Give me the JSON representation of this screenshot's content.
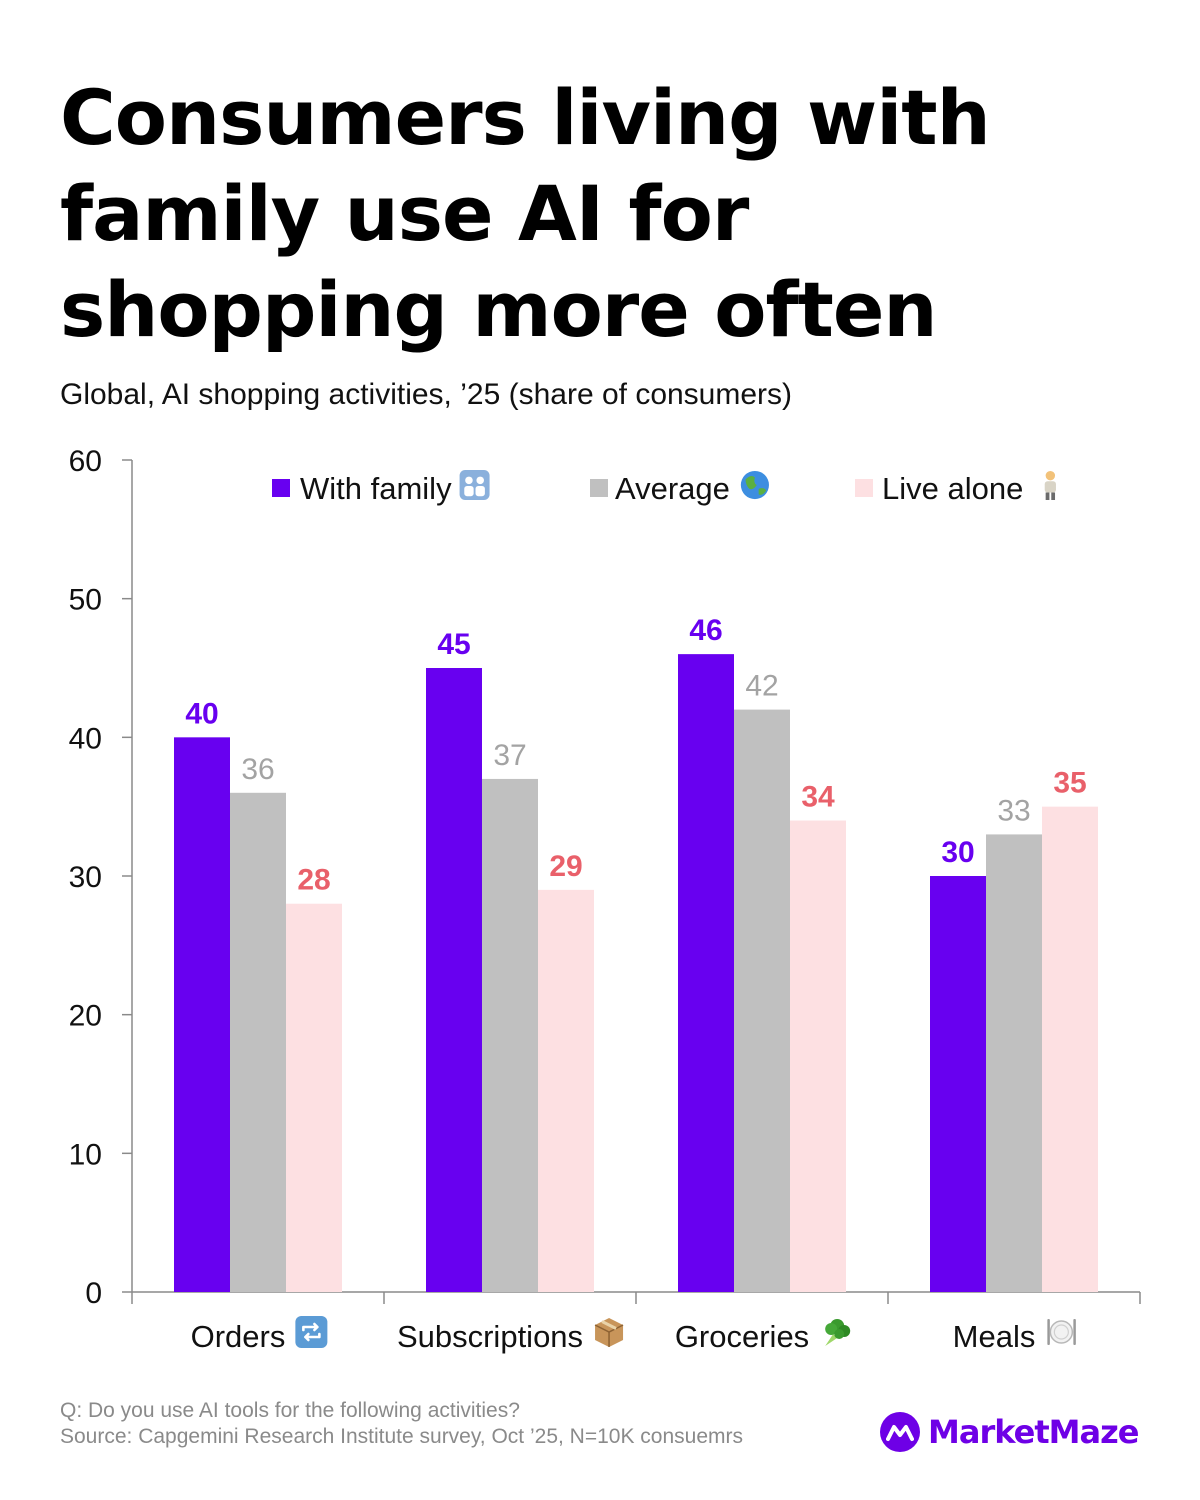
{
  "title": "Consumers living with family use AI for shopping more often",
  "subtitle": "Global, AI shopping activities, ’25 (share of consumers)",
  "footnote": {
    "question": "Q: Do you use AI tools for the following activities?",
    "source": "Source: Capgemini Research Institute survey, Oct ’25, N=10K consuemrs"
  },
  "brand": {
    "name": "MarketMaze",
    "color": "#6e00e6"
  },
  "chart_data": {
    "type": "bar",
    "title": "Consumers living with family use AI for shopping more often",
    "xlabel": "",
    "ylabel": "",
    "ylim": [
      0,
      60
    ],
    "yticks": [
      0,
      10,
      20,
      30,
      40,
      50,
      60
    ],
    "grid": false,
    "legend_position": "top",
    "categories": [
      "Orders",
      "Subscriptions",
      "Groceries",
      "Meals"
    ],
    "category_icons": [
      "repeat-icon",
      "package-icon",
      "broccoli-icon",
      "plate-icon"
    ],
    "series": [
      {
        "name": "With family",
        "icon": "family-icon",
        "color": "#6800f0",
        "label_color": "#6800f0",
        "label_weight": "bold",
        "values": [
          40,
          45,
          46,
          30
        ]
      },
      {
        "name": "Average",
        "icon": "globe-icon",
        "color": "#c0c0c0",
        "label_color": "#a3a3a3",
        "label_weight": "normal",
        "values": [
          36,
          37,
          42,
          33
        ]
      },
      {
        "name": "Live alone",
        "icon": "person-icon",
        "color": "#fde0e2",
        "label_color": "#e9606a",
        "label_weight": "bold",
        "values": [
          28,
          29,
          34,
          35
        ]
      }
    ]
  }
}
